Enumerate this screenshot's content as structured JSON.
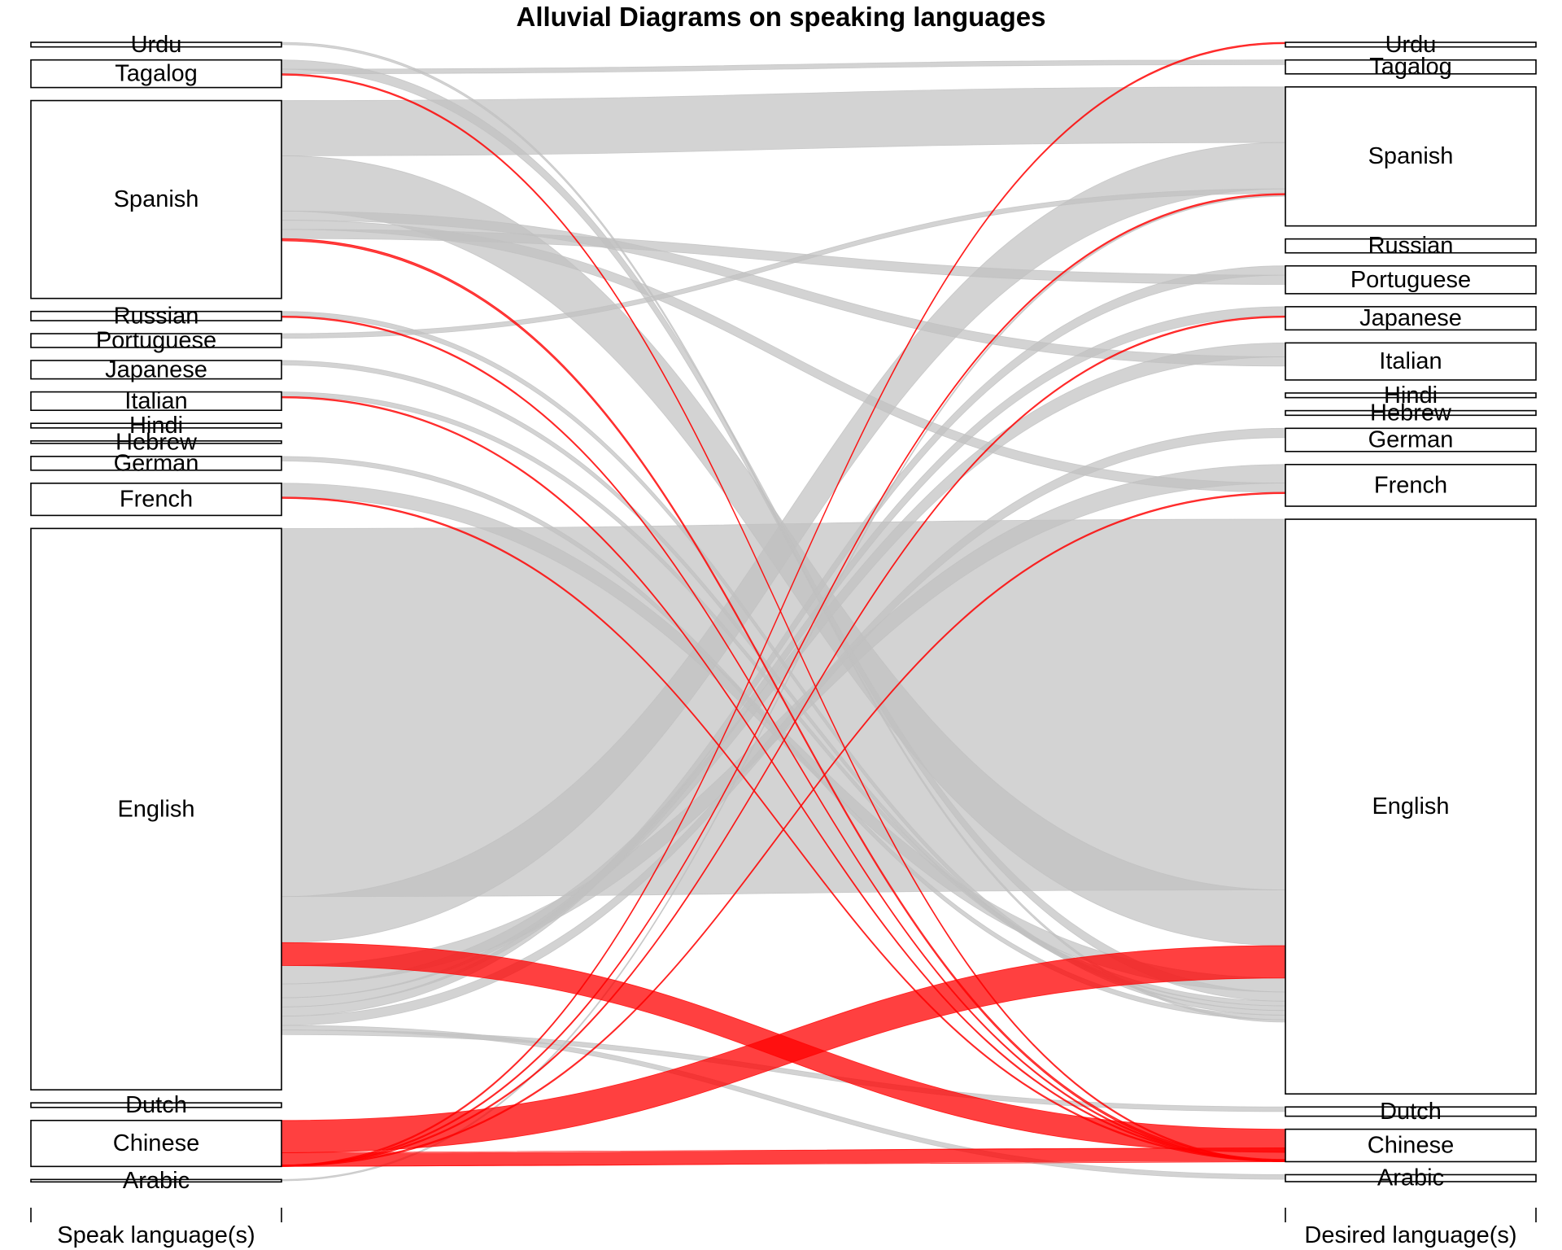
{
  "chart_data": {
    "type": "alluvial",
    "title": "Alluvial Diagrams on speaking languages",
    "axes": [
      "Speak language(s)",
      "Desired language(s)"
    ],
    "highlight_color": "#ff0000",
    "flow_color": "#c0c0c0",
    "left_nodes": [
      {
        "name": "Urdu",
        "size": 1
      },
      {
        "name": "Tagalog",
        "size": 6
      },
      {
        "name": "Spanish",
        "size": 43
      },
      {
        "name": "Russian",
        "size": 2
      },
      {
        "name": "Portuguese",
        "size": 3
      },
      {
        "name": "Japanese",
        "size": 4
      },
      {
        "name": "Italian",
        "size": 4
      },
      {
        "name": "Hindi",
        "size": 1
      },
      {
        "name": "Hebrew",
        "size": 0.5
      },
      {
        "name": "German",
        "size": 3
      },
      {
        "name": "French",
        "size": 7
      },
      {
        "name": "English",
        "size": 122
      },
      {
        "name": "Dutch",
        "size": 1
      },
      {
        "name": "Chinese",
        "size": 10
      },
      {
        "name": "Arabic",
        "size": 0.5
      }
    ],
    "right_nodes": [
      {
        "name": "Urdu",
        "size": 1
      },
      {
        "name": "Tagalog",
        "size": 3
      },
      {
        "name": "Spanish",
        "size": 30
      },
      {
        "name": "Russian",
        "size": 3
      },
      {
        "name": "Portuguese",
        "size": 6
      },
      {
        "name": "Japanese",
        "size": 5
      },
      {
        "name": "Italian",
        "size": 8
      },
      {
        "name": "Hindi",
        "size": 1
      },
      {
        "name": "Hebrew",
        "size": 1
      },
      {
        "name": "German",
        "size": 5
      },
      {
        "name": "French",
        "size": 9
      },
      {
        "name": "English",
        "size": 124
      },
      {
        "name": "Dutch",
        "size": 2
      },
      {
        "name": "Chinese",
        "size": 7
      },
      {
        "name": "Arabic",
        "size": 1.5
      }
    ],
    "flows": [
      {
        "from": "English",
        "to": "English",
        "value": 80,
        "highlight": false
      },
      {
        "from": "Spanish",
        "to": "Spanish",
        "value": 12,
        "highlight": false
      },
      {
        "from": "English",
        "to": "Spanish",
        "value": 10,
        "highlight": false
      },
      {
        "from": "Spanish",
        "to": "English",
        "value": 12,
        "highlight": false
      },
      {
        "from": "English",
        "to": "Chinese",
        "value": 5,
        "highlight": true
      },
      {
        "from": "Chinese",
        "to": "English",
        "value": 7,
        "highlight": true
      },
      {
        "from": "Chinese",
        "to": "Chinese",
        "value": 3,
        "highlight": true
      },
      {
        "from": "English",
        "to": "French",
        "value": 4,
        "highlight": false
      },
      {
        "from": "French",
        "to": "English",
        "value": 3,
        "highlight": false
      },
      {
        "from": "Tagalog",
        "to": "English",
        "value": 2,
        "highlight": false
      },
      {
        "from": "Tagalog",
        "to": "Tagalog",
        "value": 1,
        "highlight": false
      },
      {
        "from": "English",
        "to": "Italian",
        "value": 3,
        "highlight": false
      },
      {
        "from": "English",
        "to": "Japanese",
        "value": 2,
        "highlight": false
      },
      {
        "from": "English",
        "to": "Portuguese",
        "value": 2,
        "highlight": false
      },
      {
        "from": "English",
        "to": "German",
        "value": 2,
        "highlight": false
      },
      {
        "from": "Spanish",
        "to": "Italian",
        "value": 2,
        "highlight": false
      },
      {
        "from": "Spanish",
        "to": "French",
        "value": 2,
        "highlight": false
      },
      {
        "from": "Spanish",
        "to": "Portuguese",
        "value": 2,
        "highlight": false
      },
      {
        "from": "Italian",
        "to": "English",
        "value": 1,
        "highlight": false
      },
      {
        "from": "Japanese",
        "to": "English",
        "value": 1,
        "highlight": false
      },
      {
        "from": "Russian",
        "to": "English",
        "value": 1,
        "highlight": false
      },
      {
        "from": "German",
        "to": "English",
        "value": 1,
        "highlight": false
      },
      {
        "from": "Portuguese",
        "to": "Spanish",
        "value": 1,
        "highlight": false
      },
      {
        "from": "Spanish",
        "to": "Chinese",
        "value": 0.5,
        "highlight": true
      },
      {
        "from": "Tagalog",
        "to": "Chinese",
        "value": 0.3,
        "highlight": true
      },
      {
        "from": "Russian",
        "to": "Chinese",
        "value": 0.3,
        "highlight": true
      },
      {
        "from": "Italian",
        "to": "Chinese",
        "value": 0.3,
        "highlight": true
      },
      {
        "from": "French",
        "to": "Chinese",
        "value": 0.3,
        "highlight": true
      },
      {
        "from": "Chinese",
        "to": "Urdu",
        "value": 0.3,
        "highlight": true
      },
      {
        "from": "Chinese",
        "to": "Spanish",
        "value": 0.3,
        "highlight": true
      },
      {
        "from": "Chinese",
        "to": "Japanese",
        "value": 0.3,
        "highlight": true
      },
      {
        "from": "Chinese",
        "to": "French",
        "value": 0.3,
        "highlight": true
      },
      {
        "from": "English",
        "to": "Arabic",
        "value": 1,
        "highlight": false
      },
      {
        "from": "English",
        "to": "Dutch",
        "value": 1,
        "highlight": false
      },
      {
        "from": "Urdu",
        "to": "English",
        "value": 0.5,
        "highlight": false
      },
      {
        "from": "Arabic",
        "to": "Spanish",
        "value": 0.3,
        "highlight": false
      }
    ]
  }
}
